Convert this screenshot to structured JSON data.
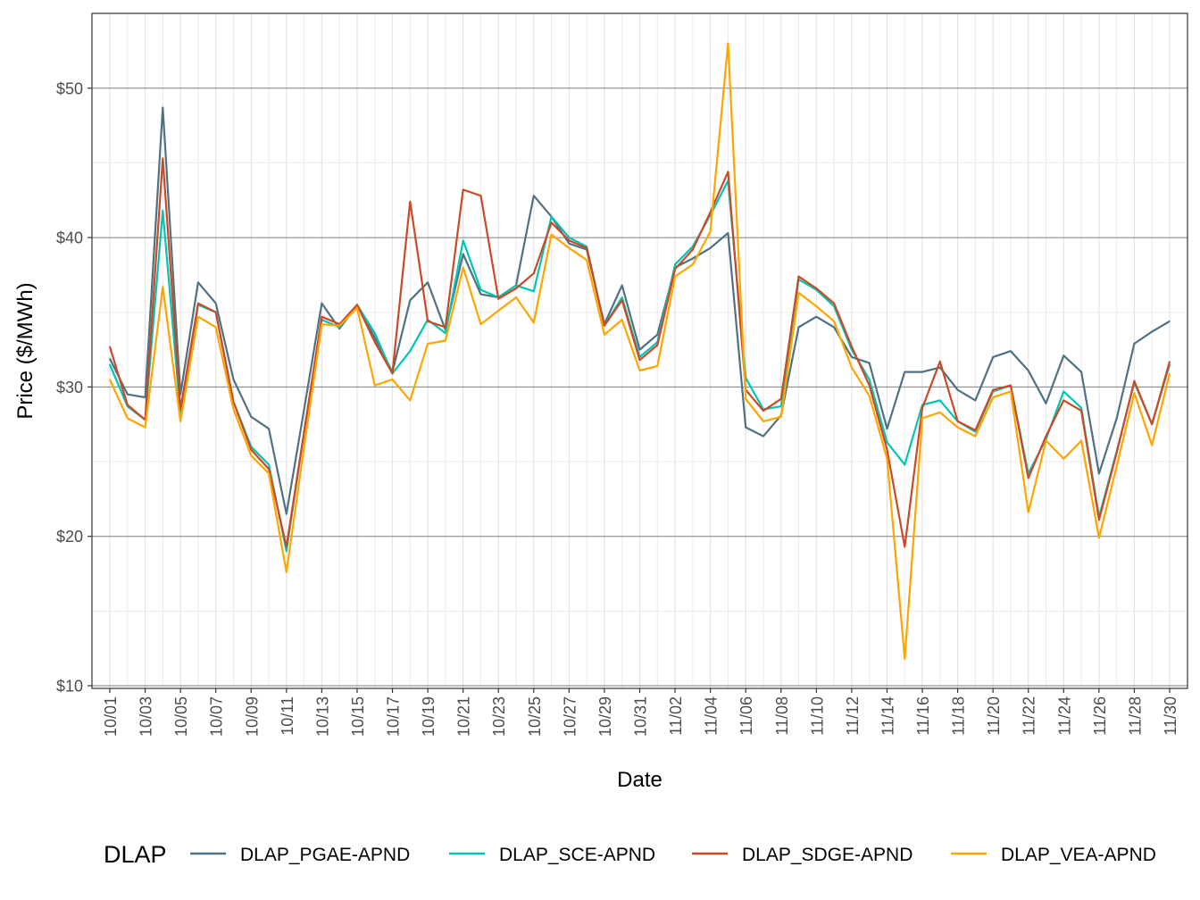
{
  "chart_data": {
    "type": "line",
    "title": "",
    "xlabel": "Date",
    "ylabel": "Price ($/MWh)",
    "ylim": [
      10,
      55
    ],
    "y_ticks": [
      10,
      20,
      30,
      40,
      50
    ],
    "y_tick_labels": [
      "$10",
      "$20",
      "$30",
      "$40",
      "$50"
    ],
    "x_tick_labels": [
      "10/01",
      "10/03",
      "10/05",
      "10/07",
      "10/09",
      "10/11",
      "10/13",
      "10/15",
      "10/17",
      "10/19",
      "10/21",
      "10/23",
      "10/25",
      "10/27",
      "10/29",
      "10/31",
      "11/02",
      "11/04",
      "11/06",
      "11/08",
      "11/10",
      "11/12",
      "11/14",
      "11/16",
      "11/18",
      "11/20",
      "11/22",
      "11/24",
      "11/26",
      "11/28",
      "11/30"
    ],
    "x": [
      "10/01",
      "10/02",
      "10/03",
      "10/04",
      "10/05",
      "10/06",
      "10/07",
      "10/08",
      "10/09",
      "10/10",
      "10/11",
      "10/12",
      "10/13",
      "10/14",
      "10/15",
      "10/16",
      "10/17",
      "10/18",
      "10/19",
      "10/20",
      "10/21",
      "10/22",
      "10/23",
      "10/24",
      "10/25",
      "10/26",
      "10/27",
      "10/28",
      "10/29",
      "10/30",
      "10/31",
      "11/01",
      "11/02",
      "11/03",
      "11/04",
      "11/05",
      "11/06",
      "11/07",
      "11/08",
      "11/09",
      "11/10",
      "11/11",
      "11/12",
      "11/13",
      "11/14",
      "11/15",
      "11/16",
      "11/17",
      "11/18",
      "11/19",
      "11/20",
      "11/21",
      "11/22",
      "11/23",
      "11/24",
      "11/25",
      "11/26",
      "11/27",
      "11/28",
      "11/29",
      "11/30"
    ],
    "grid": true,
    "legend_position": "bottom",
    "legend_title": "DLAP",
    "series": [
      {
        "name": "DLAP_PGAE-APND",
        "color": "#4e7282",
        "values": [
          31.9,
          29.5,
          29.3,
          48.7,
          29.5,
          37.0,
          35.6,
          30.5,
          28.0,
          27.2,
          21.5,
          28.5,
          35.6,
          33.9,
          35.5,
          33.3,
          31.0,
          35.8,
          37.0,
          33.8,
          38.9,
          36.2,
          36.0,
          36.8,
          42.8,
          41.4,
          39.6,
          39.2,
          34.2,
          36.8,
          32.5,
          33.5,
          38.0,
          38.6,
          39.3,
          40.3,
          27.3,
          26.7,
          28.1,
          34.0,
          34.7,
          34.0,
          32.0,
          31.6,
          27.2,
          31.0,
          31.0,
          31.3,
          29.8,
          29.1,
          32.0,
          32.4,
          31.1,
          28.9,
          32.1,
          31.0,
          24.2,
          27.9,
          32.9,
          33.7,
          34.4
        ]
      },
      {
        "name": "DLAP_SCE-APND",
        "color": "#00c5b4",
        "values": [
          31.5,
          28.7,
          27.8,
          41.8,
          28.2,
          35.5,
          35.0,
          29.0,
          26.0,
          24.8,
          19.0,
          27.0,
          34.5,
          34.0,
          35.5,
          33.6,
          30.9,
          32.4,
          34.5,
          33.6,
          39.8,
          36.5,
          36.0,
          36.8,
          36.4,
          41.4,
          40.0,
          39.4,
          34.1,
          36.0,
          32.0,
          33.0,
          38.2,
          39.4,
          41.5,
          43.8,
          30.6,
          28.5,
          28.7,
          37.2,
          36.5,
          35.4,
          32.5,
          30.5,
          26.3,
          24.8,
          28.8,
          29.1,
          27.7,
          27.0,
          29.7,
          30.1,
          24.2,
          26.5,
          29.7,
          28.6,
          21.3,
          25.7,
          30.3,
          27.5,
          31.5
        ]
      },
      {
        "name": "DLAP_SDGE-APND",
        "color": "#cb4a25",
        "values": [
          32.7,
          28.8,
          27.8,
          45.3,
          28.5,
          35.6,
          35.0,
          29.0,
          25.8,
          24.5,
          19.3,
          27.0,
          34.7,
          34.2,
          35.5,
          33.0,
          30.9,
          42.4,
          34.4,
          34.0,
          43.2,
          42.8,
          35.9,
          36.6,
          37.6,
          41.0,
          39.8,
          39.3,
          34.1,
          35.8,
          31.8,
          32.8,
          37.9,
          39.2,
          41.7,
          44.4,
          29.8,
          28.4,
          29.2,
          37.4,
          36.6,
          35.6,
          32.7,
          30.1,
          25.8,
          19.3,
          28.6,
          31.7,
          27.7,
          27.1,
          29.8,
          30.1,
          23.9,
          26.7,
          29.1,
          28.4,
          21.1,
          25.6,
          30.4,
          27.5,
          31.7
        ]
      },
      {
        "name": "DLAP_VEA-APND",
        "color": "#ffa500",
        "values": [
          30.5,
          27.9,
          27.3,
          36.7,
          27.7,
          34.7,
          34.0,
          28.5,
          25.4,
          24.2,
          17.6,
          26.0,
          34.2,
          34.1,
          35.3,
          30.1,
          30.5,
          29.1,
          32.9,
          33.1,
          38.0,
          34.2,
          35.1,
          36.0,
          34.3,
          40.2,
          39.3,
          38.5,
          33.5,
          34.5,
          31.1,
          31.4,
          37.4,
          38.2,
          40.4,
          53.0,
          29.2,
          27.7,
          28.0,
          36.3,
          35.4,
          34.4,
          31.3,
          29.4,
          25.2,
          11.8,
          27.9,
          28.3,
          27.3,
          26.7,
          29.3,
          29.7,
          21.6,
          26.4,
          25.2,
          26.4,
          19.9,
          24.7,
          29.6,
          26.1,
          30.9
        ]
      }
    ]
  }
}
